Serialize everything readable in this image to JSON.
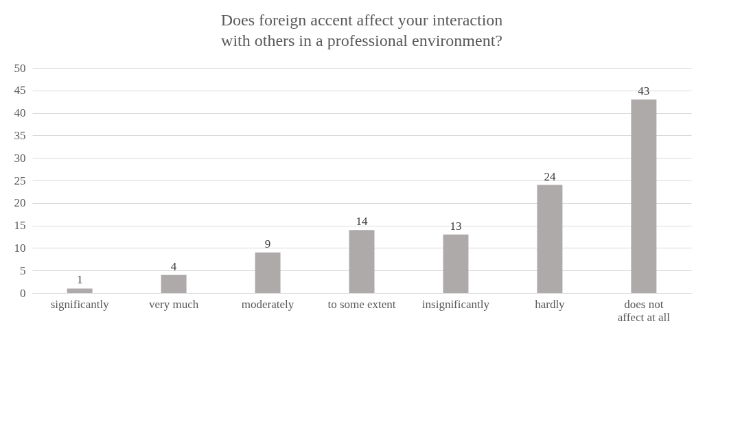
{
  "chart_data": {
    "type": "bar",
    "title": "Does foreign accent affect your interaction with others in a professional environment?",
    "categories": [
      "significantly",
      "very much",
      "moderately",
      "to some extent",
      "insignificantly",
      "hardly",
      "does not affect at all"
    ],
    "values": [
      1,
      4,
      9,
      14,
      13,
      24,
      43
    ],
    "color": "#aeaaaa",
    "data_labels": true,
    "ylim": [
      0,
      50
    ],
    "yticks": [
      0,
      5,
      10,
      15,
      20,
      25,
      30,
      35,
      40,
      45,
      50
    ],
    "grid": "y"
  }
}
